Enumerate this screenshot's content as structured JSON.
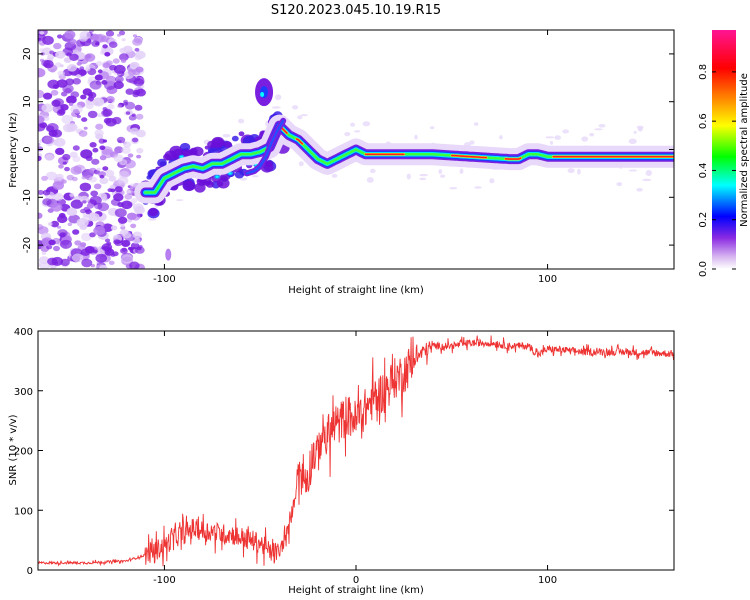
{
  "title": "S120.2023.045.10.19.R15",
  "chart_data": [
    {
      "type": "heatmap",
      "xlabel": "Height of straight line (km)",
      "ylabel": "Frequency (Hz)",
      "xlim": [
        -166,
        166
      ],
      "ylim": [
        -25,
        25
      ],
      "x_ticks": [
        -100,
        100
      ],
      "y_ticks": [
        20,
        10,
        0,
        -10,
        -20
      ],
      "colorbar": {
        "label": "Normalized spectral amplitude",
        "range": [
          0,
          0.97
        ],
        "ticks": [
          "0.0",
          "0.2",
          "0.4",
          "0.6",
          "0.8"
        ],
        "colors": [
          "#ffffff",
          "#8a2be2",
          "#0000ff",
          "#00ffff",
          "#00ff00",
          "#ffff00",
          "#ff8000",
          "#ff0000",
          "#ff1493"
        ]
      },
      "ridge": {
        "name": "",
        "x": [
          -110,
          -105,
          -100,
          -95,
          -90,
          -85,
          -80,
          -75,
          -70,
          -65,
          -60,
          -55,
          -50,
          -45,
          -40,
          -35,
          -30,
          -25,
          -20,
          -15,
          -10,
          -5,
          0,
          5,
          10,
          20,
          40,
          60,
          80,
          85,
          90,
          95,
          100,
          130,
          166
        ],
        "y": [
          -9,
          -9,
          -6,
          -5,
          -4,
          -3.5,
          -4,
          -3,
          -3,
          -2,
          -1,
          -1,
          -0.5,
          0.5,
          5,
          3,
          2,
          0,
          -2,
          -3,
          -2,
          -1,
          0,
          -1,
          -1,
          -1,
          -1,
          -1.5,
          -2,
          -2,
          -1,
          -1,
          -1.5,
          -1.5,
          -1.5
        ]
      },
      "branch": {
        "x": [
          -57,
          -53,
          -50,
          -47,
          -44,
          -41,
          -38
        ],
        "y": [
          -5,
          -4.5,
          -3.5,
          -1.5,
          1.5,
          4,
          6
        ]
      },
      "secondary_blob": {
        "x": -48,
        "y": 12
      },
      "noise_region_x": [
        -166,
        -112
      ]
    },
    {
      "type": "line",
      "xlabel": "Height of straight line (km)",
      "ylabel": "SNR (10 * v/v)",
      "xlim": [
        -166,
        166
      ],
      "ylim": [
        0,
        400
      ],
      "x_ticks": [
        -100,
        0,
        100
      ],
      "y_ticks": [
        0,
        100,
        200,
        300,
        400
      ],
      "series": [
        {
          "name": "",
          "color": "#ee3333",
          "x": [
            -166,
            -140,
            -120,
            -110,
            -100,
            -95,
            -90,
            -85,
            -80,
            -75,
            -70,
            -65,
            -60,
            -55,
            -50,
            -45,
            -40,
            -35,
            -32,
            -30,
            -28,
            -25,
            -22,
            -20,
            -18,
            -15,
            -12,
            -10,
            -5,
            0,
            5,
            10,
            15,
            20,
            25,
            30,
            35,
            40,
            50,
            60,
            70,
            80,
            90,
            95,
            100,
            120,
            140,
            166
          ],
          "y": [
            12,
            12,
            15,
            25,
            40,
            55,
            60,
            70,
            65,
            65,
            60,
            60,
            55,
            50,
            45,
            30,
            30,
            70,
            120,
            180,
            150,
            160,
            200,
            190,
            230,
            220,
            240,
            240,
            260,
            250,
            270,
            290,
            300,
            320,
            330,
            350,
            365,
            375,
            375,
            380,
            380,
            375,
            375,
            360,
            370,
            365,
            365,
            362
          ]
        }
      ]
    }
  ]
}
